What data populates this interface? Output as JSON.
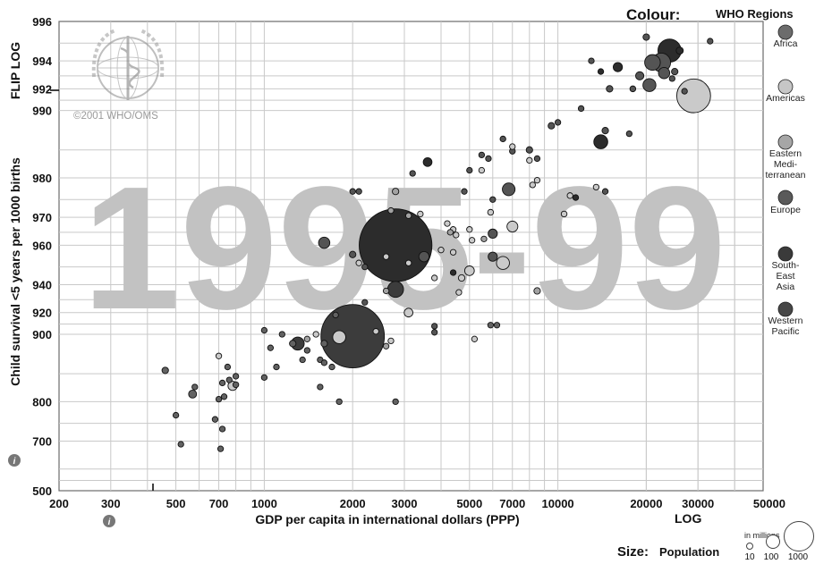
{
  "header": {
    "colour_label": "Colour:",
    "colour_value": "WHO Regions",
    "size_label": "Size:",
    "size_value": "Population",
    "size_unit": "in millions",
    "size_ticks": [
      "10",
      "100",
      "1000"
    ]
  },
  "watermark": {
    "year": "1995-99",
    "copyright": "©2001 WHO/OMS"
  },
  "controls": {
    "y_scale": "FLIP LOG",
    "x_scale": "LOG",
    "info_icon": "info-icon",
    "info_icon_2": "info-icon"
  },
  "chart_data": {
    "type": "scatter",
    "xlabel": "GDP per capita in international dollars (PPP)",
    "ylabel": "Child survival <5 years per 1000 births",
    "xlim": [
      200,
      50000
    ],
    "ylim": [
      500,
      996
    ],
    "x_scale": "log",
    "y_scale": "flip-log",
    "grid": true,
    "x_ticks": [
      "200",
      "300",
      "500",
      "700",
      "1000",
      "2000",
      "3000",
      "5000",
      "7000",
      "10000",
      "20000",
      "30000",
      "50000"
    ],
    "y_ticks": [
      "996",
      "994",
      "992",
      "990",
      "980",
      "970",
      "960",
      "940",
      "920",
      "900",
      "800",
      "700",
      "500"
    ],
    "colors": {
      "Africa": "#626262",
      "Americas": "#cacaca",
      "Eastern Mediterranean": "#a2a2a2",
      "Europe": "#545454",
      "South-East Asia": "#3c3c3c",
      "Western Pacific": "#2c2c2c"
    },
    "legend": [
      {
        "key": "Africa",
        "label": "Africa",
        "color": "#6c6c6c"
      },
      {
        "key": "Americas",
        "label": "Americas",
        "color": "#c6c6c6"
      },
      {
        "key": "Eastern Mediterranean",
        "label": "Eastern Mediterranean",
        "color": "#a6a6a6"
      },
      {
        "key": "Europe",
        "label": "Europe",
        "color": "#5a5a5a"
      },
      {
        "key": "South-East Asia",
        "label": "South-East Asia",
        "color": "#3a3a3a"
      },
      {
        "key": "Western Pacific",
        "label": "Western Pacific",
        "color": "#474747"
      }
    ],
    "points": [
      {
        "x": 24000,
        "y": 994.6,
        "pop": 126,
        "region": "Western Pacific"
      },
      {
        "x": 20000,
        "y": 995.3,
        "pop": 10,
        "region": "Europe"
      },
      {
        "x": 22500,
        "y": 993.9,
        "pop": 82,
        "region": "Europe"
      },
      {
        "x": 21000,
        "y": 993.9,
        "pop": 58,
        "region": "Europe"
      },
      {
        "x": 23000,
        "y": 993.2,
        "pop": 30,
        "region": "Europe"
      },
      {
        "x": 20500,
        "y": 992.3,
        "pop": 40,
        "region": "Europe"
      },
      {
        "x": 19000,
        "y": 993.0,
        "pop": 16,
        "region": "Europe"
      },
      {
        "x": 18000,
        "y": 992.0,
        "pop": 8,
        "region": "Europe"
      },
      {
        "x": 25000,
        "y": 993.3,
        "pop": 10,
        "region": "Europe"
      },
      {
        "x": 26000,
        "y": 994.6,
        "pop": 12,
        "region": "Western Pacific"
      },
      {
        "x": 24500,
        "y": 992.8,
        "pop": 5,
        "region": "Europe"
      },
      {
        "x": 27000,
        "y": 991.8,
        "pop": 5,
        "region": "Europe"
      },
      {
        "x": 33000,
        "y": 995.1,
        "pop": 2,
        "region": "Europe"
      },
      {
        "x": 29000,
        "y": 991.4,
        "pop": 270,
        "region": "Americas"
      },
      {
        "x": 16000,
        "y": 993.6,
        "pop": 20,
        "region": "Western Pacific"
      },
      {
        "x": 14000,
        "y": 993.3,
        "pop": 5,
        "region": "Western Pacific"
      },
      {
        "x": 15000,
        "y": 992.0,
        "pop": 10,
        "region": "Europe"
      },
      {
        "x": 13000,
        "y": 994.0,
        "pop": 4,
        "region": "Europe"
      },
      {
        "x": 12000,
        "y": 990.2,
        "pop": 2,
        "region": "Europe"
      },
      {
        "x": 14500,
        "y": 987.7,
        "pop": 10,
        "region": "Europe"
      },
      {
        "x": 14000,
        "y": 986.2,
        "pop": 46,
        "region": "Western Pacific"
      },
      {
        "x": 17500,
        "y": 987.3,
        "pop": 4,
        "region": "Europe"
      },
      {
        "x": 9500,
        "y": 988.3,
        "pop": 10,
        "region": "Europe"
      },
      {
        "x": 10000,
        "y": 988.7,
        "pop": 6,
        "region": "Europe"
      },
      {
        "x": 8000,
        "y": 985.0,
        "pop": 10,
        "region": "Europe"
      },
      {
        "x": 7000,
        "y": 984.8,
        "pop": 8,
        "region": "Europe"
      },
      {
        "x": 7000,
        "y": 985.5,
        "pop": 2,
        "region": "Americas"
      },
      {
        "x": 6500,
        "y": 986.6,
        "pop": 2,
        "region": "Europe"
      },
      {
        "x": 8500,
        "y": 983.6,
        "pop": 3,
        "region": "Europe"
      },
      {
        "x": 8000,
        "y": 983.3,
        "pop": 2,
        "region": "Americas"
      },
      {
        "x": 5500,
        "y": 984.2,
        "pop": 2,
        "region": "Europe"
      },
      {
        "x": 5800,
        "y": 983.6,
        "pop": 2,
        "region": "Europe"
      },
      {
        "x": 5000,
        "y": 981.5,
        "pop": 4,
        "region": "Europe"
      },
      {
        "x": 5500,
        "y": 981.5,
        "pop": 2,
        "region": "Americas"
      },
      {
        "x": 3600,
        "y": 983.0,
        "pop": 18,
        "region": "Western Pacific"
      },
      {
        "x": 3200,
        "y": 980.9,
        "pop": 3,
        "region": "Europe"
      },
      {
        "x": 8500,
        "y": 979.5,
        "pop": 2,
        "region": "Americas"
      },
      {
        "x": 8200,
        "y": 978.5,
        "pop": 3,
        "region": "Americas"
      },
      {
        "x": 6800,
        "y": 977.5,
        "pop": 38,
        "region": "Europe"
      },
      {
        "x": 6000,
        "y": 975.0,
        "pop": 6,
        "region": "Europe"
      },
      {
        "x": 4800,
        "y": 977.0,
        "pop": 3,
        "region": "Europe"
      },
      {
        "x": 2800,
        "y": 977.0,
        "pop": 10,
        "region": "Eastern Mediterranean"
      },
      {
        "x": 2100,
        "y": 977.0,
        "pop": 4,
        "region": "Europe"
      },
      {
        "x": 2000,
        "y": 977.0,
        "pop": 3,
        "region": "Europe"
      },
      {
        "x": 11500,
        "y": 975.5,
        "pop": 2,
        "region": "Western Pacific"
      },
      {
        "x": 11000,
        "y": 976.0,
        "pop": 4,
        "region": "Americas"
      },
      {
        "x": 13500,
        "y": 978.0,
        "pop": 2,
        "region": "Americas"
      },
      {
        "x": 14500,
        "y": 977.0,
        "pop": 2,
        "region": "Europe"
      },
      {
        "x": 10500,
        "y": 971.0,
        "pop": 8,
        "region": "Americas"
      },
      {
        "x": 5900,
        "y": 971.5,
        "pop": 8,
        "region": "Americas"
      },
      {
        "x": 7000,
        "y": 967.0,
        "pop": 28,
        "region": "Americas"
      },
      {
        "x": 6000,
        "y": 964.5,
        "pop": 20,
        "region": "Europe"
      },
      {
        "x": 2700,
        "y": 972.0,
        "pop": 4,
        "region": "Eastern Mediterranean"
      },
      {
        "x": 3100,
        "y": 970.5,
        "pop": 2,
        "region": "Eastern Mediterranean"
      },
      {
        "x": 3400,
        "y": 971.0,
        "pop": 3,
        "region": "Americas"
      },
      {
        "x": 4200,
        "y": 968.0,
        "pop": 3,
        "region": "Americas"
      },
      {
        "x": 4300,
        "y": 965.0,
        "pop": 2,
        "region": "Eastern Mediterranean"
      },
      {
        "x": 4500,
        "y": 964.0,
        "pop": 3,
        "region": "Americas"
      },
      {
        "x": 4400,
        "y": 966.0,
        "pop": 4,
        "region": "Americas"
      },
      {
        "x": 5000,
        "y": 966.0,
        "pop": 3,
        "region": "Americas"
      },
      {
        "x": 5100,
        "y": 962.0,
        "pop": 5,
        "region": "Americas"
      },
      {
        "x": 5600,
        "y": 962.5,
        "pop": 4,
        "region": "Eastern Mediterranean"
      },
      {
        "x": 2800,
        "y": 960.0,
        "pop": 1250,
        "region": "Western Pacific"
      },
      {
        "x": 1600,
        "y": 961.0,
        "pop": 30,
        "region": "Europe"
      },
      {
        "x": 2000,
        "y": 956.0,
        "pop": 10,
        "region": "Europe"
      },
      {
        "x": 2600,
        "y": 955.0,
        "pop": 3,
        "region": "Americas"
      },
      {
        "x": 3500,
        "y": 955.0,
        "pop": 25,
        "region": "Europe"
      },
      {
        "x": 4000,
        "y": 958.0,
        "pop": 3,
        "region": "Americas"
      },
      {
        "x": 4400,
        "y": 957.0,
        "pop": 3,
        "region": "Americas"
      },
      {
        "x": 6000,
        "y": 955.0,
        "pop": 20,
        "region": "Europe"
      },
      {
        "x": 6500,
        "y": 952.0,
        "pop": 40,
        "region": "Americas"
      },
      {
        "x": 2100,
        "y": 952.0,
        "pop": 2,
        "region": "Americas"
      },
      {
        "x": 2200,
        "y": 950.0,
        "pop": 2,
        "region": "Europe"
      },
      {
        "x": 3100,
        "y": 952.0,
        "pop": 3,
        "region": "Americas"
      },
      {
        "x": 4400,
        "y": 947.0,
        "pop": 3,
        "region": "Western Pacific"
      },
      {
        "x": 5000,
        "y": 948.0,
        "pop": 22,
        "region": "Americas"
      },
      {
        "x": 4700,
        "y": 944.0,
        "pop": 10,
        "region": "Americas"
      },
      {
        "x": 3800,
        "y": 944.0,
        "pop": 2,
        "region": "Americas"
      },
      {
        "x": 2800,
        "y": 937.0,
        "pop": 60,
        "region": "South-East Asia"
      },
      {
        "x": 2600,
        "y": 936.0,
        "pop": 3,
        "region": "Eastern Mediterranean"
      },
      {
        "x": 4600,
        "y": 935.0,
        "pop": 4,
        "region": "Americas"
      },
      {
        "x": 8500,
        "y": 936.0,
        "pop": 10,
        "region": "Eastern Mediterranean"
      },
      {
        "x": 2200,
        "y": 928.0,
        "pop": 4,
        "region": "Europe"
      },
      {
        "x": 3100,
        "y": 920.0,
        "pop": 18,
        "region": "Americas"
      },
      {
        "x": 1750,
        "y": 918.0,
        "pop": 4,
        "region": "Africa"
      },
      {
        "x": 2000,
        "y": 898.0,
        "pop": 950,
        "region": "South-East Asia"
      },
      {
        "x": 1300,
        "y": 890.0,
        "pop": 40,
        "region": "South-East Asia"
      },
      {
        "x": 1800,
        "y": 897.0,
        "pop": 40,
        "region": "Americas"
      },
      {
        "x": 1150,
        "y": 900.0,
        "pop": 2,
        "region": "Africa"
      },
      {
        "x": 1000,
        "y": 904.0,
        "pop": 6,
        "region": "Africa"
      },
      {
        "x": 1050,
        "y": 885.0,
        "pop": 2,
        "region": "Africa"
      },
      {
        "x": 1250,
        "y": 890.0,
        "pop": 10,
        "region": "Africa"
      },
      {
        "x": 1400,
        "y": 895.0,
        "pop": 4,
        "region": "Eastern Mediterranean"
      },
      {
        "x": 1500,
        "y": 900.0,
        "pop": 2,
        "region": "Americas"
      },
      {
        "x": 1600,
        "y": 890.0,
        "pop": 10,
        "region": "Africa"
      },
      {
        "x": 1400,
        "y": 882.0,
        "pop": 2,
        "region": "Africa"
      },
      {
        "x": 1350,
        "y": 870.0,
        "pop": 4,
        "region": "Africa"
      },
      {
        "x": 1550,
        "y": 870.0,
        "pop": 2,
        "region": "Africa"
      },
      {
        "x": 1600,
        "y": 866.0,
        "pop": 2,
        "region": "Africa"
      },
      {
        "x": 2600,
        "y": 887.0,
        "pop": 2,
        "region": "Eastern Mediterranean"
      },
      {
        "x": 2700,
        "y": 893.0,
        "pop": 2,
        "region": "Americas"
      },
      {
        "x": 2400,
        "y": 903.0,
        "pop": 2,
        "region": "Americas"
      },
      {
        "x": 3800,
        "y": 908.0,
        "pop": 2,
        "region": "Europe"
      },
      {
        "x": 3800,
        "y": 902.0,
        "pop": 2,
        "region": "Europe"
      },
      {
        "x": 5200,
        "y": 895.0,
        "pop": 2,
        "region": "Americas"
      },
      {
        "x": 5900,
        "y": 909.0,
        "pop": 2,
        "region": "Africa"
      },
      {
        "x": 6200,
        "y": 909.0,
        "pop": 2,
        "region": "Africa"
      },
      {
        "x": 1700,
        "y": 860.0,
        "pop": 2,
        "region": "Africa"
      },
      {
        "x": 1100,
        "y": 860.0,
        "pop": 2,
        "region": "Africa"
      },
      {
        "x": 1000,
        "y": 844.0,
        "pop": 6,
        "region": "Africa"
      },
      {
        "x": 1550,
        "y": 828.0,
        "pop": 2,
        "region": "Africa"
      },
      {
        "x": 1800,
        "y": 800.0,
        "pop": 2,
        "region": "Africa"
      },
      {
        "x": 2800,
        "y": 800.0,
        "pop": 4,
        "region": "Africa"
      },
      {
        "x": 700,
        "y": 875.0,
        "pop": 3,
        "region": "Americas"
      },
      {
        "x": 750,
        "y": 860.0,
        "pop": 2,
        "region": "Africa"
      },
      {
        "x": 760,
        "y": 840.0,
        "pop": 2,
        "region": "Africa"
      },
      {
        "x": 800,
        "y": 846.0,
        "pop": 2,
        "region": "Africa"
      },
      {
        "x": 720,
        "y": 835.0,
        "pop": 6,
        "region": "Africa"
      },
      {
        "x": 780,
        "y": 830.0,
        "pop": 20,
        "region": "Americas"
      },
      {
        "x": 800,
        "y": 832.0,
        "pop": 8,
        "region": "Africa"
      },
      {
        "x": 580,
        "y": 828.0,
        "pop": 4,
        "region": "Africa"
      },
      {
        "x": 570,
        "y": 815.0,
        "pop": 15,
        "region": "Africa"
      },
      {
        "x": 460,
        "y": 855.0,
        "pop": 10,
        "region": "Africa"
      },
      {
        "x": 730,
        "y": 810.0,
        "pop": 2,
        "region": "Africa"
      },
      {
        "x": 700,
        "y": 805.0,
        "pop": 6,
        "region": "Africa"
      },
      {
        "x": 500,
        "y": 770.0,
        "pop": 4,
        "region": "Africa"
      },
      {
        "x": 680,
        "y": 760.0,
        "pop": 4,
        "region": "Africa"
      },
      {
        "x": 720,
        "y": 735.0,
        "pop": 2,
        "region": "Africa"
      },
      {
        "x": 520,
        "y": 690.0,
        "pop": 2,
        "region": "Africa"
      },
      {
        "x": 710,
        "y": 675.0,
        "pop": 3,
        "region": "Africa"
      }
    ]
  }
}
